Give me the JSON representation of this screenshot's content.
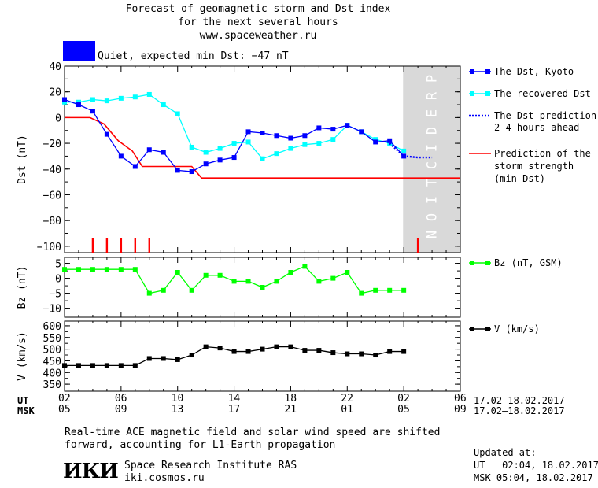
{
  "header": {
    "title_line1": "Forecast of geomagnetic storm and Dst index",
    "title_line2": "for the next several hours",
    "website": "www.spaceweather.ru",
    "status_text": "Quiet, expected min Dst: −47 nT",
    "status_color": "#0000ff"
  },
  "prediction_label": "PREDICTION",
  "legend": {
    "dst_kyoto": "The Dst, Kyoto",
    "dst_recovered": "The recovered Dst",
    "dst_prediction_1": "The Dst prediction",
    "dst_prediction_2": "2–4 hours ahead",
    "storm_1": "Prediction of the",
    "storm_2": "storm strength",
    "storm_3": "(min Dst)",
    "bz": "Bz (nT, GSM)",
    "v": "V (km/s)"
  },
  "time_axis": {
    "ut_label": "UT",
    "msk_label": "MSK",
    "ut_ticks": [
      "02",
      "06",
      "10",
      "14",
      "18",
      "22",
      "02",
      "06"
    ],
    "msk_ticks": [
      "05",
      "09",
      "13",
      "17",
      "21",
      "01",
      "05",
      "09"
    ],
    "ut_range": "17.02–18.02.2017",
    "msk_range": "17.02–18.02.2017"
  },
  "footer": {
    "note_line1": "Real-time ACE magnetic field and solar wind speed are shifted",
    "note_line2": "forward, accounting for L1-Earth propagation",
    "logo_text": "ИКИ",
    "institute": "Space Research Institute RAS",
    "institute_site": "iki.cosmos.ru",
    "updated_label": "Updated at:",
    "updated_ut": "UT   02:04, 18.02.2017",
    "updated_msk": "MSK 05:04, 18.02.2017"
  },
  "colors": {
    "dst_kyoto": "#0000ff",
    "dst_recovered": "#00ffff",
    "storm_prediction": "#ff0000",
    "bz": "#00ff00",
    "v": "#000000",
    "prediction_band": "#d9d9d9"
  },
  "chart_data": [
    {
      "type": "line",
      "title": "",
      "xlabel": "",
      "ylabel": "Dst (nT)",
      "xlim": [
        0,
        28
      ],
      "ylim": [
        -105,
        40
      ],
      "yticks": [
        40,
        20,
        0,
        -20,
        -40,
        -60,
        -80,
        -100
      ],
      "prediction_region_hours": [
        23.95,
        28
      ],
      "series": [
        {
          "name": "The Dst, Kyoto",
          "x": [
            0,
            1,
            2,
            3,
            4,
            5,
            6,
            7,
            8,
            9,
            10,
            11,
            12,
            13,
            14,
            15,
            16,
            17,
            18,
            19,
            20,
            21,
            22,
            23,
            24
          ],
          "y": [
            14,
            10,
            5,
            -13,
            -30,
            -38,
            -25,
            -27,
            -41,
            -42,
            -36,
            -33,
            -31,
            -11,
            -12,
            -14,
            -16,
            -14,
            -8,
            -9,
            -6,
            -11,
            -19,
            -18,
            -30
          ]
        },
        {
          "name": "The recovered Dst",
          "x": [
            0,
            1,
            2,
            3,
            4,
            5,
            6,
            7,
            8,
            9,
            10,
            11,
            12,
            13,
            14,
            15,
            16,
            17,
            18,
            19,
            20,
            21,
            22,
            23,
            24
          ],
          "y": [
            12,
            12,
            14,
            13,
            15,
            16,
            18,
            10,
            3,
            -23,
            -27,
            -24,
            -20,
            -19,
            -32,
            -28,
            -24,
            -21,
            -20,
            -17,
            -6,
            -11,
            -17,
            -20,
            -26
          ]
        },
        {
          "name": "The Dst prediction 2–4 hours ahead",
          "x": [
            23,
            24,
            25,
            26
          ],
          "y": [
            -20,
            -30,
            -31,
            -31
          ]
        },
        {
          "name": "Prediction of the storm strength (min Dst)",
          "x": [
            0,
            1.8,
            2.8,
            3.8,
            4.8,
            5.5,
            6.2,
            9.0,
            9.7,
            28
          ],
          "y": [
            0,
            0,
            -5,
            -18,
            -26,
            -38,
            -38,
            -38,
            -47,
            -47
          ]
        }
      ],
      "event_markers_hours": [
        2,
        3,
        4,
        5,
        6,
        25
      ]
    },
    {
      "type": "line",
      "ylabel": "Bz (nT)",
      "ylim": [
        -13,
        7
      ],
      "yticks": [
        5,
        0,
        -5,
        -10
      ],
      "series": [
        {
          "name": "Bz (nT, GSM)",
          "x": [
            0,
            1,
            2,
            3,
            4,
            5,
            6,
            7,
            8,
            9,
            10,
            11,
            12,
            13,
            14,
            15,
            16,
            17,
            18,
            19,
            20,
            21,
            22,
            23,
            24
          ],
          "y": [
            3,
            3,
            3,
            3,
            3,
            3,
            -5,
            -4,
            2,
            -4,
            1,
            1,
            -1,
            -1,
            -3,
            -1,
            2,
            4,
            -1,
            0,
            2,
            -5,
            -4,
            -4,
            -4
          ]
        }
      ]
    },
    {
      "type": "line",
      "ylabel": "V (km/s)",
      "ylim": [
        320,
        620
      ],
      "yticks": [
        600,
        550,
        500,
        450,
        400,
        350
      ],
      "series": [
        {
          "name": "V (km/s)",
          "x": [
            0,
            1,
            2,
            3,
            4,
            5,
            6,
            7,
            8,
            9,
            10,
            11,
            12,
            13,
            14,
            15,
            16,
            17,
            18,
            19,
            20,
            21,
            22,
            23,
            24
          ],
          "y": [
            430,
            430,
            430,
            430,
            430,
            430,
            460,
            460,
            455,
            475,
            510,
            505,
            490,
            490,
            500,
            510,
            510,
            495,
            495,
            485,
            480,
            480,
            475,
            490,
            490
          ]
        }
      ]
    }
  ]
}
